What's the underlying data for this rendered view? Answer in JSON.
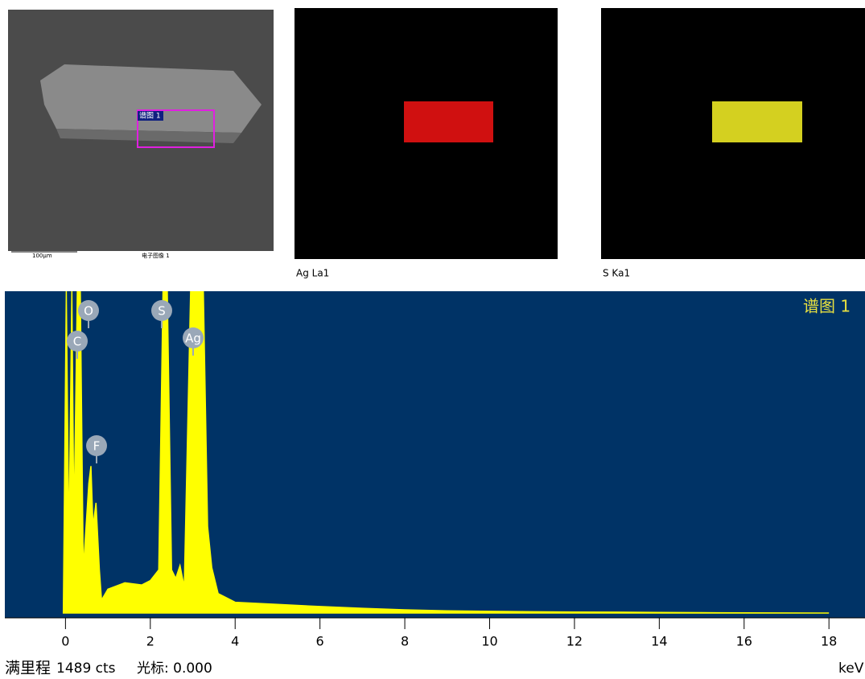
{
  "images": {
    "sem": {
      "region_label": "谱图 1",
      "scale_label": "100µm",
      "caption": "电子图像 1"
    },
    "maps": [
      {
        "label": "Ag La1",
        "color": "#d01010"
      },
      {
        "label": "S Ka1",
        "color": "#d4d020"
      }
    ]
  },
  "chart_data": {
    "type": "area",
    "title": "谱图 1",
    "x": [
      -0.05,
      0.02,
      0.08,
      0.15,
      0.2,
      0.28,
      0.35,
      0.42,
      0.55,
      0.6,
      0.65,
      0.72,
      0.8,
      0.85,
      1.0,
      1.4,
      1.8,
      2.0,
      2.2,
      2.3,
      2.4,
      2.5,
      2.6,
      2.7,
      2.8,
      2.95,
      3.05,
      3.15,
      3.25,
      3.35,
      3.45,
      3.6,
      3.8,
      4.0,
      5,
      6,
      7,
      8,
      9,
      10,
      11,
      12,
      13,
      14,
      15,
      16,
      18
    ],
    "values": [
      0,
      1489,
      300,
      1489,
      400,
      1489,
      1489,
      200,
      600,
      680,
      400,
      510,
      200,
      60,
      110,
      140,
      130,
      150,
      200,
      1489,
      1489,
      200,
      160,
      220,
      120,
      1489,
      1489,
      1489,
      1489,
      400,
      210,
      90,
      70,
      50,
      40,
      30,
      22,
      15,
      10,
      8,
      6,
      5,
      4,
      3,
      2,
      1,
      0
    ],
    "color": "#ffff00",
    "background": "#003366",
    "xlim": [
      -1.43,
      18.85
    ],
    "xticks": [
      0,
      2,
      4,
      6,
      8,
      10,
      12,
      14,
      16,
      18
    ],
    "ylim": [
      0,
      1489
    ],
    "peak_labels": [
      "O",
      "C",
      "S",
      "Ag",
      "F"
    ],
    "footer": {
      "full_scale": "满里程",
      "counts": "1489 cts",
      "cursor": "光标: 0.000",
      "unit": "keV"
    }
  }
}
